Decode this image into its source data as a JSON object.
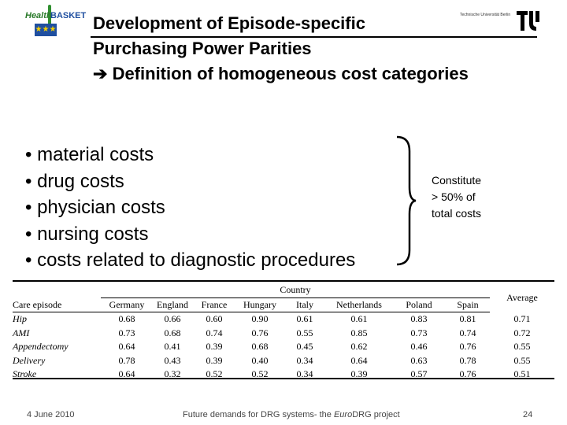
{
  "logo": {
    "word1": "Health",
    "word2": "BASKET",
    "emblem": "EU flag"
  },
  "title": {
    "line1": "Development of Episode-specific",
    "line2": "Purchasing Power Parities",
    "arrow": "➔",
    "line3": "Definition of homogeneous cost categories"
  },
  "university": "Technische Universität Berlin",
  "bullets": [
    "• material costs",
    "• drug costs",
    "• physician costs",
    "• nursing costs",
    "• costs related to diagnostic procedures"
  ],
  "note": {
    "line1": "Constitute",
    "line2": "> 50% of",
    "line3": "total costs"
  },
  "table": {
    "country_label": "Country",
    "average_label": "Average",
    "episode_header": "Care episode",
    "countries": [
      "Germany",
      "England",
      "France",
      "Hungary",
      "Italy",
      "Netherlands",
      "Poland",
      "Spain"
    ],
    "rows": [
      {
        "episode": "Hip",
        "values": [
          "0.68",
          "0.66",
          "0.60",
          "0.90",
          "0.61",
          "0.61",
          "0.83",
          "0.81"
        ],
        "average": "0.71"
      },
      {
        "episode": "AMI",
        "values": [
          "0.73",
          "0.68",
          "0.74",
          "0.76",
          "0.55",
          "0.85",
          "0.73",
          "0.74"
        ],
        "average": "0.72"
      },
      {
        "episode": "Appendectomy",
        "values": [
          "0.64",
          "0.41",
          "0.39",
          "0.68",
          "0.45",
          "0.62",
          "0.46",
          "0.76"
        ],
        "average": "0.55"
      },
      {
        "episode": "Delivery",
        "values": [
          "0.78",
          "0.43",
          "0.39",
          "0.40",
          "0.34",
          "0.64",
          "0.63",
          "0.78"
        ],
        "average": "0.55"
      },
      {
        "episode": "Stroke",
        "values": [
          "0.64",
          "0.32",
          "0.52",
          "0.52",
          "0.34",
          "0.39",
          "0.57",
          "0.76"
        ],
        "average": "0.51"
      }
    ]
  },
  "footer": {
    "date": "4 June 2010",
    "mid_prefix": "Future demands for DRG systems- the ",
    "mid_italic": "Euro",
    "mid_suffix": "DRG project",
    "page": "24"
  }
}
